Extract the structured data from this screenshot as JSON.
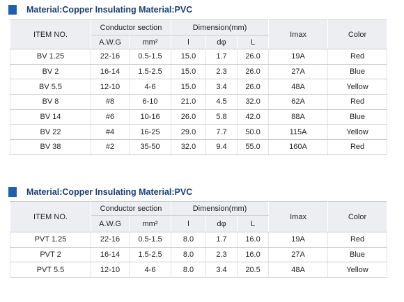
{
  "sections": [
    {
      "title": "Material:Copper Insulating Material:PVC",
      "table": {
        "header": {
          "item": "ITEM NO.",
          "conductor": "Conductor section",
          "dimension": "Dimension(mm)",
          "imax": "Imax",
          "color": "Color",
          "awg": "A.W.G",
          "mm2": "mm²",
          "l": "l",
          "d": "dφ",
          "L": "L"
        },
        "rows": [
          [
            "BV 1.25",
            "22-16",
            "0.5-1.5",
            "15.0",
            "1.7",
            "26.0",
            "19A",
            "Red"
          ],
          [
            "BV 2",
            "16-14",
            "1.5-2.5",
            "15.0",
            "2.3",
            "26.0",
            "27A",
            "Blue"
          ],
          [
            "BV 5.5",
            "12-10",
            "4-6",
            "15.0",
            "3.4",
            "26.0",
            "48A",
            "Yellow"
          ],
          [
            "BV 8",
            "#8",
            "6-10",
            "21.0",
            "4.5",
            "32.0",
            "62A",
            "Red"
          ],
          [
            "BV 14",
            "#6",
            "10-16",
            "26.0",
            "5.8",
            "42.0",
            "88A",
            "Blue"
          ],
          [
            "BV 22",
            "#4",
            "16-25",
            "29.0",
            "7.7",
            "50.0",
            "115A",
            "Yellow"
          ],
          [
            "BV 38",
            "#2",
            "35-50",
            "32.0",
            "9.4",
            "55.0",
            "160A",
            "Red"
          ]
        ]
      }
    },
    {
      "title": "Material:Copper Insulating Material:PVC",
      "table": {
        "header": {
          "item": "ITEM NO.",
          "conductor": "Conductor section",
          "dimension": "Dimension(mm)",
          "imax": "Imax",
          "color": "Color",
          "awg": "A.W.G",
          "mm2": "mm²",
          "l": "l",
          "d": "dφ",
          "L": "L"
        },
        "rows": [
          [
            "PVT 1.25",
            "22-16",
            "0.5-1.5",
            "8.0",
            "1.7",
            "16.0",
            "19A",
            "Red"
          ],
          [
            "PVT 2",
            "16-14",
            "1.5-2.5",
            "8.0",
            "2.3",
            "16.0",
            "27A",
            "Blue"
          ],
          [
            "PVT 5.5",
            "12-10",
            "4-6",
            "8.0",
            "3.4",
            "20.5",
            "48A",
            "Yellow"
          ]
        ]
      }
    }
  ]
}
